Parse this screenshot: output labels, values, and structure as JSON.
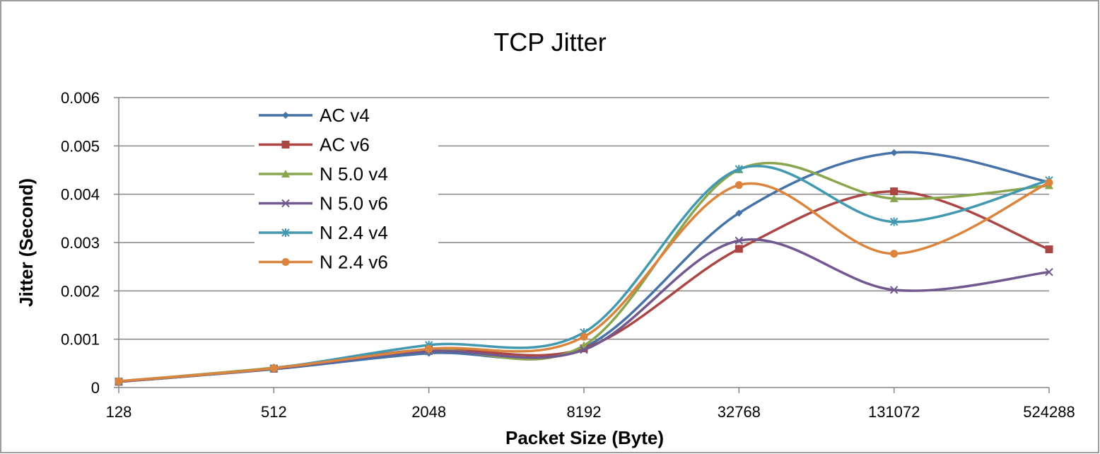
{
  "chart_data": {
    "type": "line",
    "title": "TCP Jitter",
    "xlabel": "Packet Size (Byte)",
    "ylabel": "Jitter (Second)",
    "categories": [
      "128",
      "512",
      "2048",
      "8192",
      "32768",
      "131072",
      "524288"
    ],
    "y_ticks": [
      "0",
      "0.001",
      "0.002",
      "0.003",
      "0.004",
      "0.005",
      "0.006"
    ],
    "ylim": [
      0,
      0.006
    ],
    "grid": "horizontal",
    "legend_position": "upper-left",
    "series": [
      {
        "name": "AC v4",
        "color": "#4572a7",
        "marker": "diamond",
        "values": [
          0.00012,
          0.00038,
          0.00071,
          0.00083,
          0.00361,
          0.00486,
          0.00425
        ]
      },
      {
        "name": "AC v6",
        "color": "#aa4643",
        "marker": "square",
        "values": [
          0.00012,
          0.00039,
          0.00079,
          0.00081,
          0.00287,
          0.00406,
          0.00286
        ]
      },
      {
        "name": "N 5.0 v4",
        "color": "#89a54e",
        "marker": "triangle",
        "values": [
          0.00013,
          0.00041,
          0.00077,
          0.00087,
          0.00451,
          0.00391,
          0.00418
        ]
      },
      {
        "name": "N 5.0 v6",
        "color": "#71588f",
        "marker": "x",
        "values": [
          0.00012,
          0.00039,
          0.00075,
          0.00078,
          0.00304,
          0.00202,
          0.00239
        ]
      },
      {
        "name": "N 2.4 v4",
        "color": "#4198af",
        "marker": "star",
        "values": [
          0.00013,
          0.0004,
          0.00088,
          0.00114,
          0.00452,
          0.00343,
          0.00429
        ]
      },
      {
        "name": "N 2.4 v6",
        "color": "#db843d",
        "marker": "circle",
        "values": [
          0.00013,
          0.0004,
          0.0008,
          0.00105,
          0.00419,
          0.00277,
          0.00424
        ]
      }
    ]
  }
}
